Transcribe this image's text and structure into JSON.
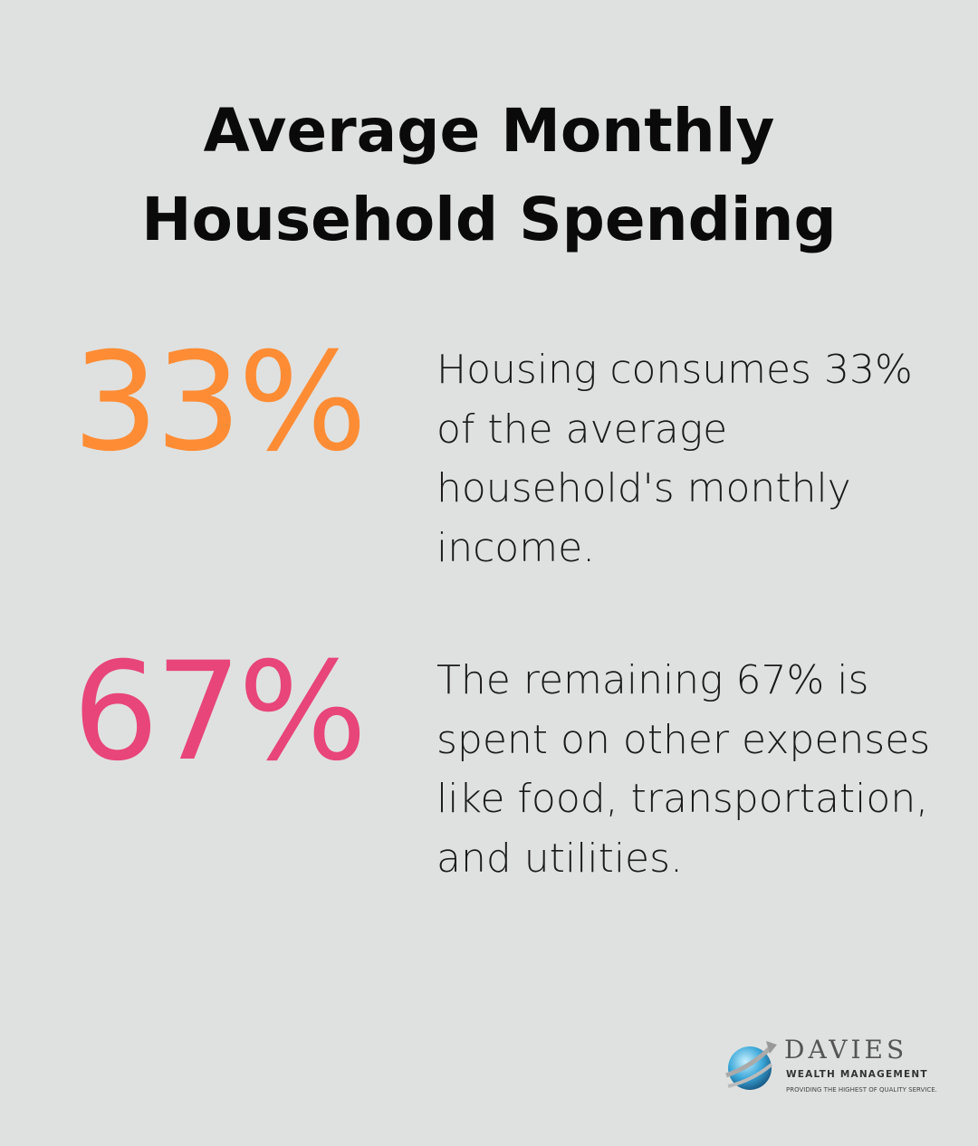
{
  "title": {
    "line1": "Average Monthly",
    "line2": "Household Spending"
  },
  "stats": [
    {
      "value": "33%",
      "color": "#fd8c35",
      "description": "Housing consumes 33% of the average household's monthly income."
    },
    {
      "value": "67%",
      "color": "#e8457a",
      "description": "The remaining 67% is spent on other expenses like food, transportation, and utilities."
    }
  ],
  "logo": {
    "brand": "DAVIES",
    "subtitle": "WEALTH MANAGEMENT",
    "tagline": "PROVIDING THE HIGHEST OF QUALITY SERVICE."
  }
}
